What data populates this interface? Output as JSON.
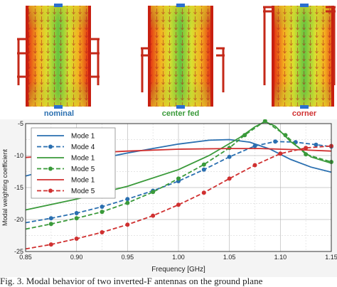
{
  "panels": [
    {
      "label": "nominal",
      "label_color": "#2a6fb0"
    },
    {
      "label": "center fed",
      "label_color": "#3a9a3a"
    },
    {
      "label": "corner",
      "label_color": "#d03030"
    }
  ],
  "caption": "Fig. 3. Modal behavior of two inverted-F antennas on the ground plane",
  "chart_data": {
    "type": "line",
    "xlabel": "Frequency [GHz]",
    "ylabel": "Modal weighting coefficient",
    "xlim": [
      0.85,
      1.15
    ],
    "ylim": [
      -25,
      -5
    ],
    "xticks": [
      "0.85",
      "0.90",
      "0.95",
      "1.00",
      "1.05",
      "1.10",
      "1.15"
    ],
    "yticks": [
      "-5",
      "-10",
      "-15",
      "-20",
      "-25"
    ],
    "grid": true,
    "legend_position": "top-left",
    "series": [
      {
        "name": "Mode 1",
        "color": "#2a6fb0",
        "dashed": false,
        "markers": false,
        "x": [
          0.85,
          0.9,
          0.95,
          1.0,
          1.03,
          1.05,
          1.07,
          1.09,
          1.11,
          1.13,
          1.15
        ],
        "y": [
          -13.2,
          -11.2,
          -9.6,
          -8.2,
          -7.6,
          -7.5,
          -7.9,
          -9.0,
          -10.6,
          -11.8,
          -12.6
        ]
      },
      {
        "name": "Mode 4",
        "color": "#2a6fb0",
        "dashed": true,
        "markers": true,
        "x": [
          0.85,
          0.875,
          0.9,
          0.925,
          0.95,
          0.975,
          1.0,
          1.025,
          1.05,
          1.075,
          1.095,
          1.115,
          1.135,
          1.15
        ],
        "y": [
          -20.5,
          -19.8,
          -19.0,
          -18.0,
          -16.8,
          -15.5,
          -14.0,
          -12.2,
          -10.2,
          -8.5,
          -7.8,
          -7.9,
          -8.3,
          -8.6
        ]
      },
      {
        "name": "Mode 1",
        "color": "#3a9a3a",
        "dashed": false,
        "markers": false,
        "x": [
          0.85,
          0.9,
          0.95,
          1.0,
          1.03,
          1.06,
          1.075,
          1.085,
          1.095,
          1.11,
          1.13,
          1.15
        ],
        "y": [
          -18.5,
          -16.8,
          -14.8,
          -12.2,
          -10.0,
          -7.2,
          -5.5,
          -4.7,
          -5.4,
          -7.8,
          -10.2,
          -11.2
        ]
      },
      {
        "name": "Mode 5",
        "color": "#3a9a3a",
        "dashed": true,
        "markers": true,
        "x": [
          0.85,
          0.875,
          0.9,
          0.925,
          0.95,
          0.975,
          1.0,
          1.025,
          1.05,
          1.065,
          1.085,
          1.105,
          1.125,
          1.15
        ],
        "y": [
          -21.5,
          -20.7,
          -19.8,
          -18.8,
          -17.4,
          -15.7,
          -13.6,
          -11.4,
          -8.8,
          -6.8,
          -4.6,
          -6.8,
          -9.8,
          -11.0
        ]
      },
      {
        "name": "Mode 1",
        "color": "#d03030",
        "dashed": false,
        "markers": false,
        "x": [
          0.85,
          0.9,
          0.95,
          1.0,
          1.05,
          1.08,
          1.1,
          1.12,
          1.15
        ],
        "y": [
          -10.3,
          -9.7,
          -9.3,
          -9.0,
          -8.9,
          -8.9,
          -9.0,
          -9.1,
          -9.3
        ]
      },
      {
        "name": "Mode 5",
        "color": "#d03030",
        "dashed": true,
        "markers": true,
        "x": [
          0.85,
          0.875,
          0.9,
          0.925,
          0.95,
          0.975,
          1.0,
          1.025,
          1.05,
          1.075,
          1.1,
          1.125,
          1.15
        ],
        "y": [
          -24.6,
          -23.9,
          -23.0,
          -22.0,
          -20.8,
          -19.4,
          -17.7,
          -15.8,
          -13.6,
          -11.5,
          -9.7,
          -8.8,
          -8.5
        ]
      }
    ]
  }
}
